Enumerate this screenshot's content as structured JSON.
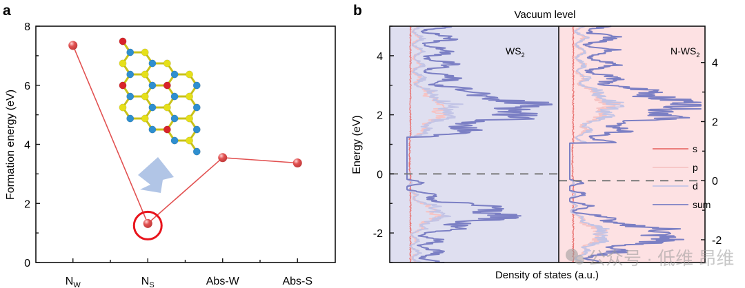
{
  "panel_labels": {
    "a": "a",
    "b": "b"
  },
  "watermark": "公众号 · 低维 昂维",
  "chart_data": [
    {
      "panel": "a",
      "type": "line",
      "title": "",
      "xlabel": "",
      "ylabel": "Formation energy (eV)",
      "ylim": [
        0,
        8
      ],
      "yticks": [
        0,
        2,
        4,
        6,
        8
      ],
      "categories": [
        {
          "main": "N",
          "sub": "W"
        },
        {
          "main": "N",
          "sub": "S"
        },
        {
          "main": "Abs-W",
          "sub": ""
        },
        {
          "main": "Abs-S",
          "sub": ""
        }
      ],
      "values": [
        7.35,
        1.32,
        3.55,
        3.37
      ],
      "highlighted_index": 1,
      "colors": {
        "line": "#e25252",
        "marker": "#e25252",
        "highlight": "#e8141c",
        "arrow": "#a9bfe3"
      },
      "inset": {
        "description": "N-doped WS2 lattice structure",
        "atom_colors": {
          "W": "#2f8fcf",
          "S": "#e6e01a",
          "N": "#d8242a"
        }
      }
    },
    {
      "panel": "b",
      "type": "line",
      "title": "Vacuum level",
      "xlabel": "Density of states (a.u.)",
      "ylabel": "Energy (eV)",
      "ylim_left": [
        -3,
        5
      ],
      "yticks_left": [
        -2,
        0,
        2,
        4
      ],
      "yticks_right": [
        -2,
        0,
        2,
        4
      ],
      "right_axis_offset_eV": -0.23,
      "subpanels": [
        {
          "name": "WS2",
          "label_main": "WS",
          "label_sub": "2",
          "background": "#dfdff0",
          "fermi_level": 0.0,
          "peaks": {
            "conduction_main_eV": 2.2,
            "valence_main_eV": -1.35,
            "band_gap_range": [
              0.0,
              1.25
            ]
          }
        },
        {
          "name": "N-WS2",
          "label_main": "N-WS",
          "label_sub": "2",
          "background": "#fde1e3",
          "fermi_level": -0.23,
          "peaks": {
            "conduction_main_eV": 2.3,
            "valence_main_eV": -2.05
          }
        }
      ],
      "legend": {
        "placement": "right-middle",
        "entries": [
          {
            "label": "s",
            "color": "#e8706e"
          },
          {
            "label": "p",
            "color": "#f6c3c3"
          },
          {
            "label": "d",
            "color": "#c2c4e6"
          },
          {
            "label": "sum",
            "color": "#7b7fc4"
          }
        ]
      },
      "colors": {
        "fermi_dash": "#7a7a7a"
      }
    }
  ]
}
